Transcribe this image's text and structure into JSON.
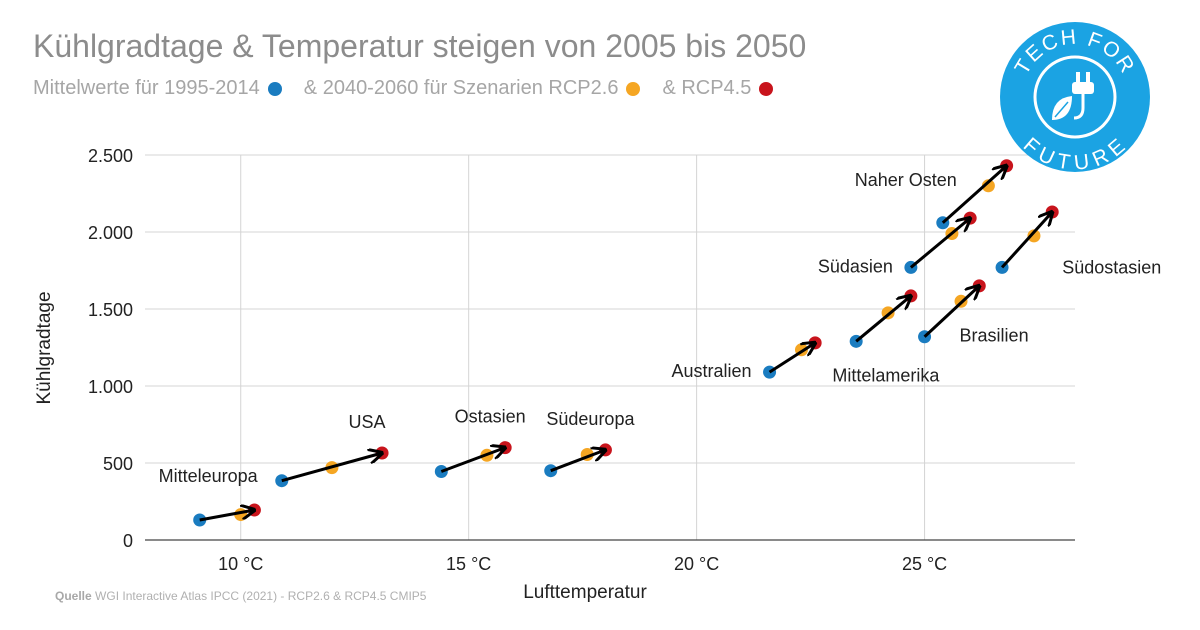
{
  "header": {
    "title": "Kühlgradtage & Temperatur steigen von 2005 bis 2050",
    "subtitle_part1": "Mittelwerte für 1995-2014",
    "subtitle_part2": "& 2040-2060 für Szenarien RCP2.6",
    "subtitle_part3": "& RCP4.5"
  },
  "source": {
    "label": "Quelle",
    "text": "WGI Interactive Atlas IPCC (2021) - RCP2.6 & RCP4.5 CMIP5"
  },
  "logo": {
    "top": "TECH FOR",
    "bottom": "FUTURE",
    "color": "#1ba3e3",
    "icon": "plug-leaf-icon"
  },
  "colors": {
    "baseline": "#1a7cc0",
    "rcp26": "#f5a623",
    "rcp45": "#c8141c",
    "arrow": "#000000",
    "grid": "#d4d4d4"
  },
  "chart_data": {
    "type": "scatter",
    "title": "Kühlgradtage & Temperatur steigen von 2005 bis 2050",
    "xlabel": "Lufttemperatur",
    "ylabel": "Kühlgradtage",
    "xlim": [
      7.9,
      28.3
    ],
    "ylim": [
      0,
      2500
    ],
    "x_ticks": [
      10,
      15,
      20,
      25
    ],
    "x_tick_labels": [
      "10 °C",
      "15 °C",
      "20 °C",
      "25 °C"
    ],
    "y_ticks": [
      0,
      500,
      1000,
      1500,
      2000,
      2500
    ],
    "y_tick_labels": [
      "0",
      "500",
      "1.000",
      "1.500",
      "2.000",
      "2.500"
    ],
    "grid": true,
    "series": [
      {
        "name": "Mittelwerte für 1995-2014",
        "key": "baseline"
      },
      {
        "name": "2040-2060 RCP2.6",
        "key": "rcp26"
      },
      {
        "name": "RCP4.5",
        "key": "rcp45"
      }
    ],
    "regions": [
      {
        "name": "Mitteleuropa",
        "label_pos": "above-left",
        "baseline": [
          9.1,
          130
        ],
        "rcp26": [
          10.0,
          165
        ],
        "rcp45": [
          10.3,
          195
        ]
      },
      {
        "name": "USA",
        "label_pos": "above",
        "baseline": [
          10.9,
          385
        ],
        "rcp26": [
          12.0,
          470
        ],
        "rcp45": [
          13.1,
          565
        ]
      },
      {
        "name": "Ostasien",
        "label_pos": "above",
        "baseline": [
          14.4,
          445
        ],
        "rcp26": [
          15.4,
          550
        ],
        "rcp45": [
          15.8,
          600
        ]
      },
      {
        "name": "Südeuropa",
        "label_pos": "above",
        "baseline": [
          16.8,
          450
        ],
        "rcp26": [
          17.6,
          555
        ],
        "rcp45": [
          18.0,
          585
        ]
      },
      {
        "name": "Australien",
        "label_pos": "left",
        "baseline": [
          21.6,
          1090
        ],
        "rcp26": [
          22.3,
          1235
        ],
        "rcp45": [
          22.6,
          1280
        ]
      },
      {
        "name": "Mittelamerika",
        "label_pos": "below",
        "baseline": [
          23.5,
          1290
        ],
        "rcp26": [
          24.2,
          1475
        ],
        "rcp45": [
          24.7,
          1585
        ]
      },
      {
        "name": "Südasien",
        "label_pos": "left",
        "baseline": [
          24.7,
          1770
        ],
        "rcp26": [
          25.6,
          1990
        ],
        "rcp45": [
          26.0,
          2090
        ]
      },
      {
        "name": "Naher Osten",
        "label_pos": "above-left",
        "baseline": [
          25.4,
          2060
        ],
        "rcp26": [
          26.4,
          2300
        ],
        "rcp45": [
          26.8,
          2430
        ]
      },
      {
        "name": "Brasilien",
        "label_pos": "below-right",
        "baseline": [
          25.0,
          1320
        ],
        "rcp26": [
          25.8,
          1550
        ],
        "rcp45": [
          26.2,
          1650
        ]
      },
      {
        "name": "Südostasien",
        "label_pos": "right",
        "baseline": [
          26.7,
          1770
        ],
        "rcp26": [
          27.4,
          1975
        ],
        "rcp45": [
          27.8,
          2130
        ]
      }
    ]
  }
}
